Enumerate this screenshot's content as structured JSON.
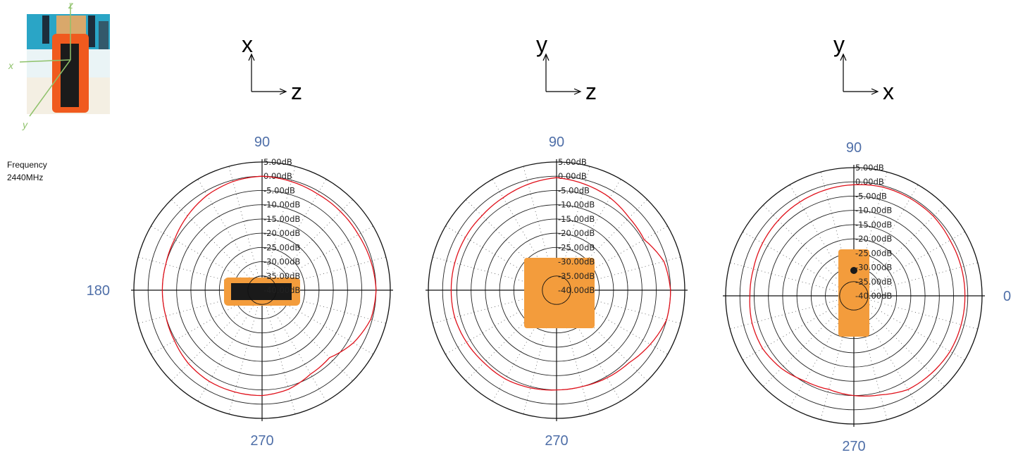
{
  "frequency": {
    "label": "Frequency",
    "value": "2440MHz"
  },
  "photo": {
    "axes": [
      "z",
      "x",
      "y"
    ]
  },
  "colors": {
    "pattern": "#e0101a",
    "angle_text": "#4f6fa8",
    "device_orange": "#f39c3c",
    "photo_axis": "#8fc26b"
  },
  "chart_data": [
    {
      "type": "polar",
      "plane_axes": {
        "vertical": "x",
        "horizontal": "z"
      },
      "angle_labels": {
        "top": "90",
        "left": "180",
        "bottom": "270"
      },
      "ring_labels": [
        "5.00dB",
        "0.00dB",
        "-5.00dB",
        "-10.00dB",
        "-15.00dB",
        "-20.00dB",
        "-25.00dB",
        "-30.00dB",
        "-35.00dB",
        "-40.00dB"
      ],
      "r_range_db": [
        -40,
        5
      ],
      "grid": true,
      "series": [
        {
          "angles_deg": [
            0,
            15,
            30,
            45,
            60,
            75,
            90,
            105,
            120,
            135,
            150,
            165,
            180,
            195,
            210,
            225,
            240,
            255,
            270,
            285,
            300,
            315,
            330,
            345
          ],
          "gain_db": [
            0,
            -0.5,
            -1,
            -1,
            -1,
            -0.5,
            0,
            -0.5,
            -1.5,
            -3,
            -4.5,
            -5,
            -5,
            -5,
            -4.5,
            -3.5,
            -3,
            -3,
            -3,
            -4,
            -6,
            -6.5,
            -3,
            -0.5
          ]
        }
      ]
    },
    {
      "type": "polar",
      "plane_axes": {
        "vertical": "y",
        "horizontal": "z"
      },
      "angle_labels": {
        "top": "90",
        "bottom": "270"
      },
      "ring_labels": [
        "5.00dB",
        "0.00dB",
        "-5.00dB",
        "-10.00dB",
        "-15.00dB",
        "-20.00dB",
        "-25.00dB",
        "-30.00dB",
        "-35.00dB",
        "-40.00dB"
      ],
      "r_range_db": [
        -40,
        5
      ],
      "grid": true,
      "series": [
        {
          "angles_deg": [
            0,
            15,
            30,
            45,
            60,
            75,
            90,
            105,
            120,
            135,
            150,
            165,
            180,
            195,
            210,
            225,
            240,
            255,
            270,
            285,
            300,
            315,
            330,
            345
          ],
          "gain_db": [
            0,
            -1,
            -4.5,
            -4,
            -2.5,
            -1.5,
            -0.5,
            -1.5,
            -2.5,
            -3,
            -3,
            -3,
            -3,
            -3,
            -3.5,
            -4,
            -4,
            -4.5,
            -5,
            -5,
            -4.5,
            -4,
            -2,
            0
          ]
        }
      ]
    },
    {
      "type": "polar",
      "plane_axes": {
        "vertical": "y",
        "horizontal": "x"
      },
      "angle_labels": {
        "top": "90",
        "right": "0",
        "bottom": "270"
      },
      "ring_labels": [
        "5.00dB",
        "0.00dB",
        "-5.00dB",
        "-10.00dB",
        "-15.00dB",
        "-20.00dB",
        "-25.00dB",
        "-30.00dB",
        "-35.00dB",
        "-40.00dB"
      ],
      "r_range_db": [
        -40,
        5
      ],
      "grid": true,
      "series": [
        {
          "angles_deg": [
            0,
            15,
            30,
            45,
            60,
            75,
            90,
            105,
            120,
            135,
            150,
            165,
            180,
            195,
            210,
            225,
            240,
            255,
            270,
            285,
            300,
            315,
            330,
            345
          ],
          "gain_db": [
            -1,
            -1,
            -1,
            -0.5,
            -0.5,
            -0.5,
            -1,
            -1.5,
            -2,
            -2.5,
            -3,
            -3.5,
            -3.5,
            -3,
            -3,
            -4,
            -5.5,
            -6,
            -5,
            -4,
            -2,
            -1.5,
            -1,
            -1
          ]
        }
      ]
    }
  ]
}
